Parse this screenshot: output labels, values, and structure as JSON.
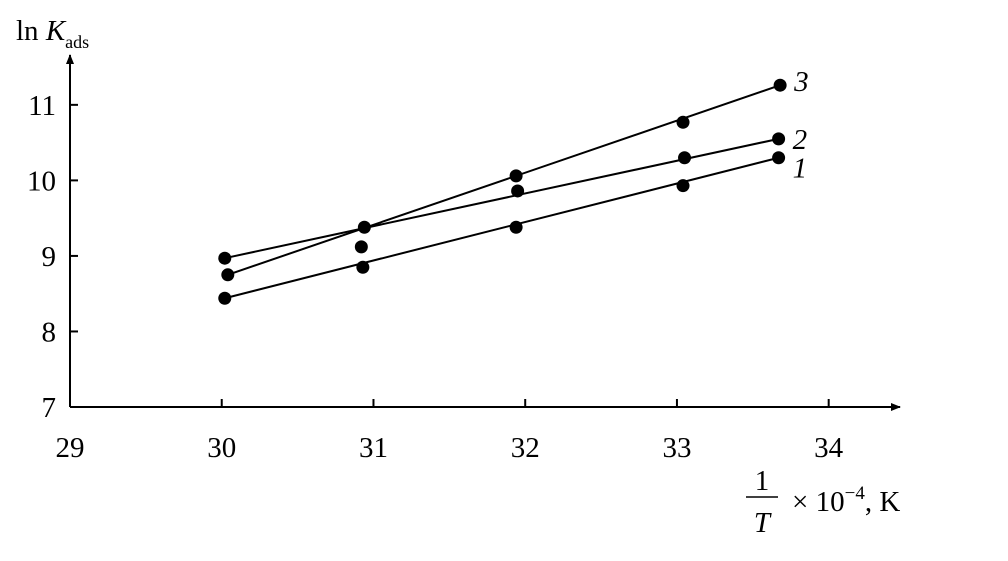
{
  "chart_data": {
    "type": "scatter",
    "ylabel": {
      "prefix": "ln",
      "var": "K",
      "sub": "ads"
    },
    "xlabel": {
      "numerator": "1",
      "denominator": "T",
      "text": "× 10",
      "sup": "−4",
      "unit": ", K"
    },
    "xlim": [
      29,
      34.47
    ],
    "ylim": [
      7,
      11.66
    ],
    "xticks": [
      29,
      30,
      31,
      32,
      33,
      34
    ],
    "yticks": [
      7,
      8,
      9,
      10,
      11
    ],
    "fit_lines": true,
    "series": [
      {
        "name": "1",
        "color": "#000000",
        "x": [
          30.02,
          30.93,
          31.94,
          33.04,
          33.67
        ],
        "values": [
          8.44,
          8.85,
          9.38,
          9.93,
          10.3
        ]
      },
      {
        "name": "2",
        "color": "#000000",
        "x": [
          30.02,
          30.92,
          31.95,
          33.05,
          33.67
        ],
        "values": [
          8.97,
          9.12,
          9.86,
          10.3,
          10.55
        ]
      },
      {
        "name": "3",
        "color": "#000000",
        "x": [
          30.04,
          30.94,
          31.94,
          33.04,
          33.68
        ],
        "values": [
          8.75,
          9.38,
          10.06,
          10.77,
          11.26
        ]
      }
    ]
  }
}
